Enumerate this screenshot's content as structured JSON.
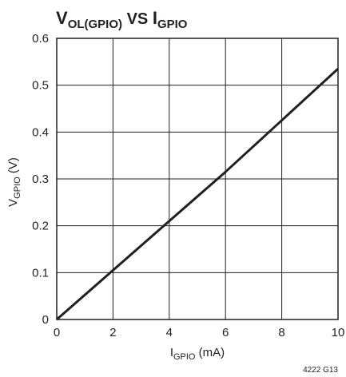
{
  "chart_data": {
    "type": "line",
    "title": {
      "v": "V",
      "v_sub": "OL(GPIO)",
      "mid": " VS ",
      "i": "I",
      "i_sub": "GPIO"
    },
    "xlabel": {
      "main": "I",
      "sub": "GPIO",
      "unit": " (mA)"
    },
    "ylabel": {
      "main": "V",
      "sub": "GPIO",
      "unit": " (V)"
    },
    "xlim": [
      0,
      10
    ],
    "ylim": [
      0,
      0.6
    ],
    "x_ticks": [
      "0",
      "2",
      "4",
      "6",
      "8",
      "10"
    ],
    "y_ticks": [
      "0",
      "0.1",
      "0.2",
      "0.3",
      "0.4",
      "0.5",
      "0.6"
    ],
    "grid": true,
    "series": [
      {
        "x": [
          0,
          2,
          4,
          6,
          8,
          10
        ],
        "y": [
          0,
          0.105,
          0.21,
          0.315,
          0.425,
          0.535
        ],
        "color": "#231f20"
      }
    ],
    "figure_id": "4222 G13"
  }
}
